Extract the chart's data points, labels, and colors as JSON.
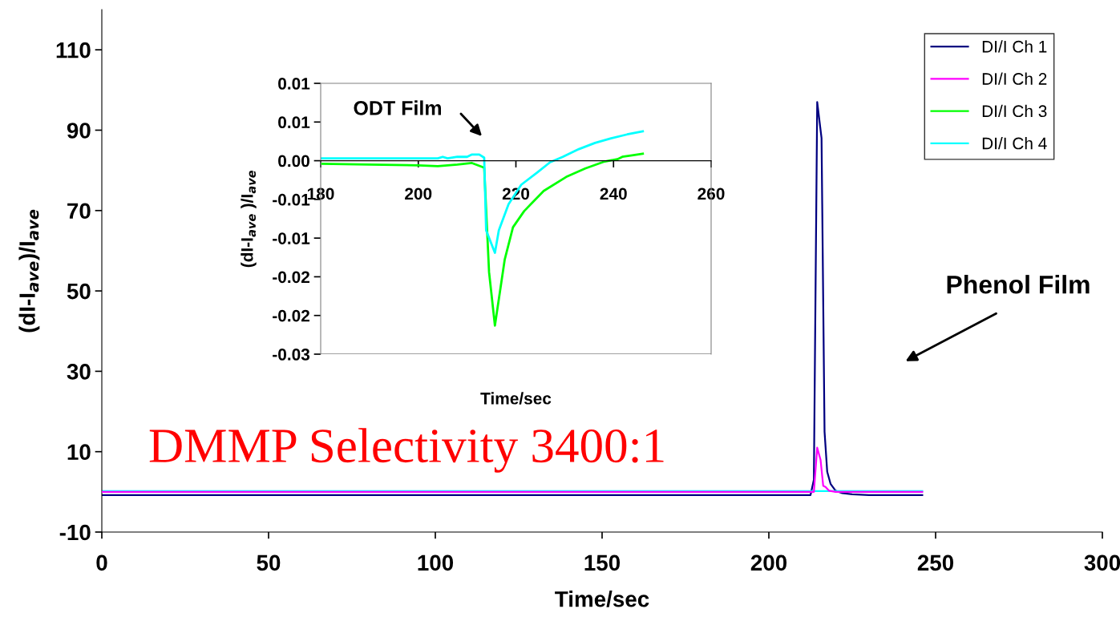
{
  "chart_data": [
    {
      "type": "line",
      "xlabel": "Time/sec",
      "ylabel": "(dI-I$_{ave}$)/I$_{ave}$",
      "xlim": [
        0,
        300
      ],
      "xticks": [
        0,
        50,
        100,
        150,
        200,
        250,
        300
      ],
      "ylim": [
        -10,
        120
      ],
      "yticks": [
        -10,
        10,
        30,
        50,
        70,
        90,
        110
      ],
      "grid": false,
      "legend": "top right",
      "marker": "none",
      "line_style": "solid",
      "series": [
        {
          "name": "DI/I Ch 1",
          "color": "#000080",
          "x": [
            0,
            212.5,
            213.5,
            214.5,
            215.8,
            216.7,
            217.5,
            218.5,
            220,
            222,
            225,
            230,
            246
          ],
          "values": [
            -0.8,
            -0.8,
            3,
            97,
            88,
            15,
            5,
            2,
            0.3,
            -0.3,
            -0.6,
            -0.8,
            -0.8
          ]
        },
        {
          "name": "DI/I Ch 2",
          "color": "#ff00ff",
          "x": [
            0,
            213.5,
            214.5,
            215.5,
            216.3,
            217,
            218,
            220,
            246
          ],
          "values": [
            0,
            0,
            11,
            8,
            1.5,
            1.2,
            0.3,
            0,
            0
          ]
        },
        {
          "name": "DI/I Ch 3",
          "color": "#00ff00"
        },
        {
          "name": "DI/I Ch 4",
          "color": "#00ffff",
          "x": [
            0,
            246
          ],
          "values": [
            0.2,
            0.2
          ]
        }
      ],
      "annotations": [
        "DMMP Selectivity 3400:1",
        "Phenol Film"
      ]
    },
    {
      "type": "line",
      "xlabel": "Time/sec",
      "ylabel": "(dI-I$_{ave}$ )/I$_{ave}$",
      "xlim": [
        180,
        260
      ],
      "xticks": [
        180,
        200,
        220,
        240,
        260
      ],
      "ylim": [
        -0.025,
        0.01
      ],
      "yticks": [
        {
          "value": 0.01,
          "label": "0.01"
        },
        {
          "value": 0.005,
          "label": "0.01"
        },
        {
          "value": 0,
          "label": "0.00"
        },
        {
          "value": -0.005,
          "label": "-0.01"
        },
        {
          "value": -0.01,
          "label": "-0.01"
        },
        {
          "value": -0.015,
          "label": "-0.02"
        },
        {
          "value": -0.02,
          "label": "-0.02"
        },
        {
          "value": -0.025,
          "label": "-0.03"
        }
      ],
      "grid": false,
      "marker": "none",
      "line_style": "solid",
      "series": [
        {
          "color": "#00ff00",
          "x": [
            180,
            190,
            200,
            204,
            208,
            211,
            213.5,
            214.5,
            215.7,
            217.7,
            219.4,
            221.7,
            225.7,
            230.3,
            234.2,
            238.2,
            240.8,
            241.8,
            243.8,
            246
          ],
          "values": [
            -0.0004,
            -0.0005,
            -0.0006,
            -0.0007,
            -0.0005,
            -0.0003,
            -0.0009,
            -0.0144,
            -0.0213,
            -0.0128,
            -0.0086,
            -0.0065,
            -0.0039,
            -0.0021,
            -0.001,
            -0.0001,
            0.0002,
            0.0005,
            0.0007,
            0.0009
          ]
        },
        {
          "color": "#00ffff",
          "x": [
            180,
            204,
            205,
            206,
            208,
            210,
            211,
            212.5,
            213.5,
            213.9,
            215.7,
            216.5,
            218.5,
            221.1,
            224.4,
            227,
            229.6,
            232.9,
            236.2,
            239.5,
            242.8,
            246
          ],
          "values": [
            0.0003,
            0.0003,
            0.0005,
            0.0003,
            0.0005,
            0.0005,
            0.0008,
            0.0008,
            0.0004,
            -0.009,
            -0.0119,
            -0.009,
            -0.0056,
            -0.0031,
            -0.0015,
            -0.0002,
            0.0005,
            0.0015,
            0.0023,
            0.0029,
            0.0034,
            0.0038
          ]
        }
      ],
      "annotations": [
        "ODT Film"
      ]
    }
  ]
}
